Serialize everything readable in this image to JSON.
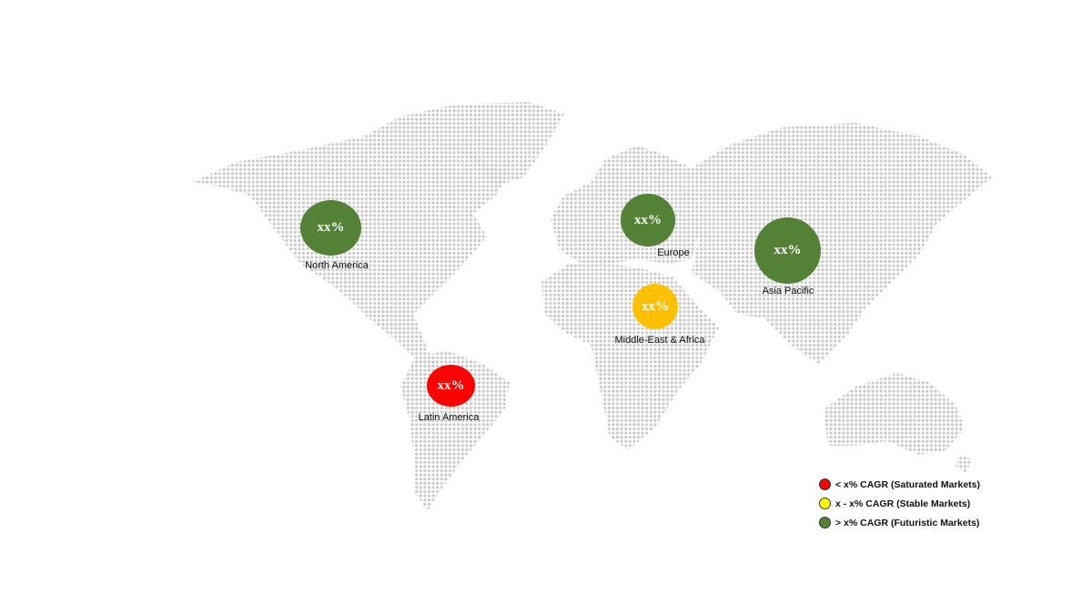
{
  "regions": [
    {
      "name": "North America",
      "value": "xx%",
      "status": "futuristic",
      "color": "#538135"
    },
    {
      "name": "Latin America",
      "value": "xx%",
      "status": "saturated",
      "color": "#ff0000"
    },
    {
      "name": "Europe",
      "value": "xx%",
      "status": "futuristic",
      "color": "#538135"
    },
    {
      "name": "Middle-East & Africa",
      "value": "xx%",
      "status": "stable",
      "color": "#ffc000"
    },
    {
      "name": "Asia Pacific",
      "value": "xx%",
      "status": "futuristic",
      "color": "#538135"
    }
  ],
  "legend": [
    {
      "label": "< x% CAGR (Saturated Markets)",
      "color": "#ff0000"
    },
    {
      "label": "x - x% CAGR (Stable Markets)",
      "color": "#ffff00"
    },
    {
      "label": "> x% CAGR (Futuristic Markets)",
      "color": "#548235"
    }
  ],
  "map_style": {
    "dot_color": "#c8c8c8",
    "type": "dotted world map"
  }
}
